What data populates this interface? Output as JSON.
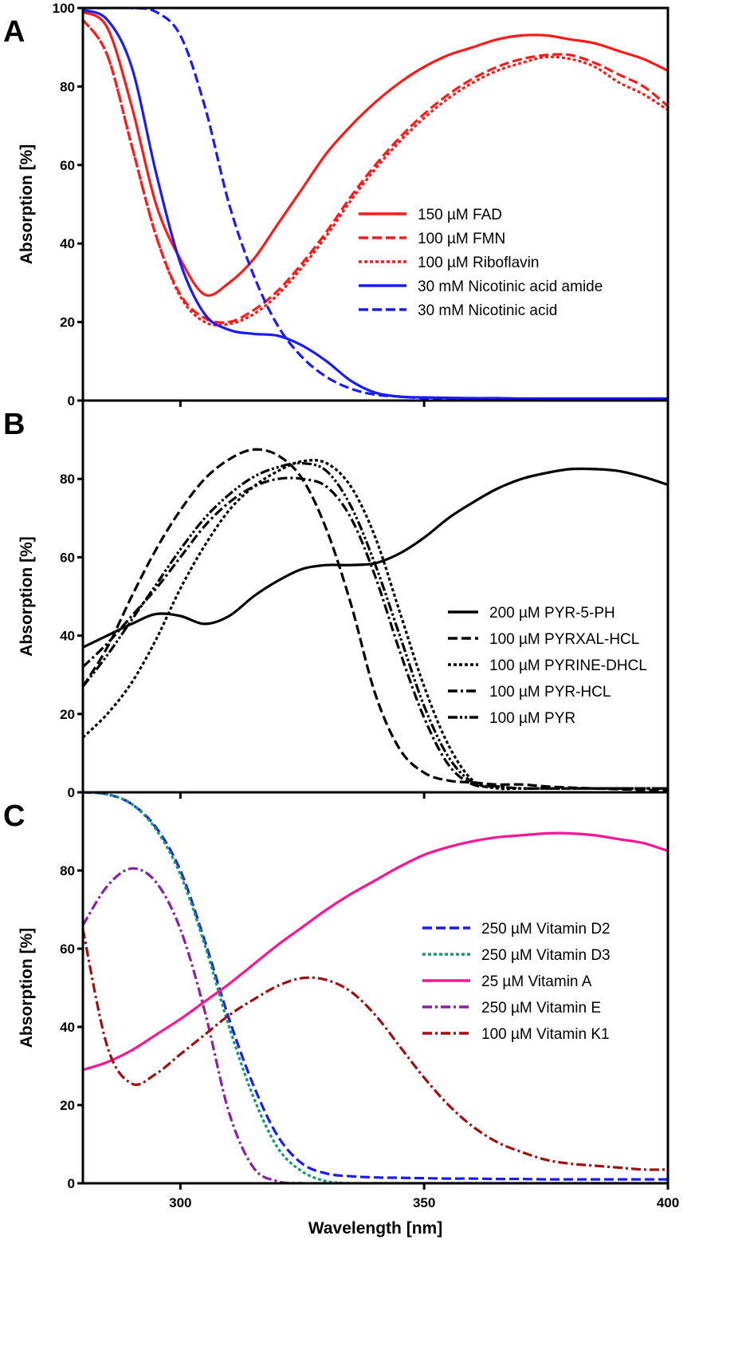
{
  "chart_data": [
    {
      "panel_label": "A",
      "type": "line",
      "ylabel": "Absorption [%]",
      "xlabel": "",
      "xlim": [
        280,
        400
      ],
      "ylim": [
        0,
        100
      ],
      "yticks": [
        "0",
        "20",
        "40",
        "60",
        "80",
        "100"
      ],
      "xticks": [],
      "legend_position": "center-right",
      "x": [
        280,
        285,
        290,
        295,
        300,
        305,
        310,
        315,
        320,
        325,
        330,
        335,
        340,
        345,
        350,
        355,
        360,
        365,
        370,
        375,
        380,
        385,
        390,
        395,
        400
      ],
      "series": [
        {
          "name": "150 µM FAD",
          "color": "#ff1a1a",
          "dash": "solid",
          "values": [
            99,
            95,
            75,
            50,
            36,
            27,
            30,
            36,
            45,
            54,
            63,
            70,
            76,
            81,
            85,
            88,
            90,
            92,
            93,
            93,
            92,
            91,
            89,
            87,
            84
          ]
        },
        {
          "name": "100 µM FMN",
          "color": "#ff1a1a",
          "dash": "dashed",
          "values": [
            97,
            88,
            65,
            42,
            27,
            21,
            20,
            23,
            28,
            35,
            43,
            52,
            60,
            67,
            73,
            78,
            82,
            85,
            87,
            88,
            88,
            86,
            83,
            80,
            75
          ]
        },
        {
          "name": "100 µM Riboflavin",
          "color": "#ff1a1a",
          "dash": "dotted",
          "values": [
            97,
            88,
            65,
            42,
            26.5,
            20,
            19.5,
            22,
            27,
            34,
            42,
            51,
            59,
            66,
            72,
            77,
            81,
            84,
            86,
            87.5,
            87,
            85,
            81,
            78,
            74
          ]
        },
        {
          "name": "30 mM Nicotinic acid amide",
          "color": "#1a1aff",
          "dash": "solid",
          "values": [
            99.5,
            97,
            85,
            58,
            35,
            22,
            18,
            17,
            16.5,
            14,
            10,
            5,
            2,
            1,
            0.8,
            0.7,
            0.6,
            0.6,
            0.5,
            0.5,
            0.5,
            0.5,
            0.5,
            0.5,
            0.5
          ]
        },
        {
          "name": "30 mM Nicotinic acid",
          "color": "#1a1aff",
          "dash": "dashed",
          "values": [
            100,
            100,
            100,
            99,
            93,
            75,
            50,
            32,
            19,
            11,
            6,
            3,
            1.5,
            1,
            0.6,
            0.5,
            0.4,
            0.4,
            0.3,
            0.3,
            0.3,
            0.3,
            0.3,
            0.3,
            0.3
          ]
        }
      ]
    },
    {
      "panel_label": "B",
      "type": "line",
      "ylabel": "Absorption [%]",
      "xlabel": "",
      "xlim": [
        280,
        400
      ],
      "ylim": [
        0,
        100
      ],
      "yticks": [
        "0",
        "20",
        "40",
        "60",
        "80"
      ],
      "xticks": [],
      "legend_position": "center-right",
      "x": [
        280,
        285,
        290,
        295,
        300,
        305,
        310,
        315,
        320,
        325,
        330,
        335,
        340,
        345,
        350,
        355,
        360,
        365,
        370,
        375,
        380,
        385,
        390,
        395,
        400
      ],
      "series": [
        {
          "name": "200 µM PYR-5-PH",
          "color": "#000000",
          "dash": "solid",
          "values": [
            37,
            40,
            43,
            45.5,
            45,
            43,
            45,
            50,
            54,
            57,
            58,
            58,
            58.5,
            61,
            65,
            70,
            74,
            77.5,
            80,
            81.5,
            82.5,
            82.5,
            82,
            80.5,
            78.5
          ]
        },
        {
          "name": "100 µM PYRXAL-HCL",
          "color": "#000000",
          "dash": "dashed",
          "values": [
            27,
            37,
            50,
            62,
            72,
            80,
            85,
            87.5,
            86,
            80,
            67,
            48,
            25,
            11,
            5,
            3,
            2.5,
            2,
            2,
            1.5,
            1.2,
            1,
            0.8,
            0.6,
            0.5
          ]
        },
        {
          "name": "100 µM PYRINE-DHCL",
          "color": "#000000",
          "dash": "dotted",
          "values": [
            14,
            20,
            28,
            39,
            52,
            63,
            72,
            78,
            82,
            84.5,
            84,
            78,
            65,
            46,
            27,
            12,
            3,
            1,
            1,
            1,
            1,
            1,
            1,
            1,
            1
          ]
        },
        {
          "name": "100 µM PYR-HCL",
          "color": "#000000",
          "dash": "dashdot",
          "values": [
            32,
            38,
            45,
            52,
            60,
            68,
            74,
            78,
            80,
            80,
            78,
            70,
            55,
            36,
            19,
            7,
            2,
            1.5,
            1,
            1,
            1,
            1,
            1,
            1,
            1
          ]
        },
        {
          "name": "100 µM PYR",
          "color": "#000000",
          "dash": "dashdotdot",
          "values": [
            27,
            35,
            44,
            53,
            62,
            70,
            76,
            80.5,
            83,
            84,
            82,
            73,
            58,
            40,
            22,
            9,
            2.5,
            1.5,
            1,
            1,
            1,
            1,
            1,
            1,
            1
          ]
        }
      ]
    },
    {
      "panel_label": "C",
      "type": "line",
      "ylabel": "Absorption [%]",
      "xlabel": "Wavelength [nm]",
      "xlim": [
        280,
        400
      ],
      "ylim": [
        0,
        100
      ],
      "yticks": [
        "0",
        "20",
        "40",
        "60",
        "80"
      ],
      "xticks": [
        "300",
        "350",
        "400"
      ],
      "legend_position": "center-right",
      "x": [
        280,
        285,
        290,
        295,
        300,
        305,
        310,
        315,
        320,
        325,
        330,
        335,
        340,
        345,
        350,
        355,
        360,
        365,
        370,
        375,
        380,
        385,
        390,
        395,
        400
      ],
      "series": [
        {
          "name": "250 µM Vitamin D2",
          "color": "#1a1aff",
          "dash": "dashed",
          "values": [
            100,
            99.5,
            97,
            91,
            80,
            62,
            42,
            25,
            12,
            5,
            2.5,
            1.8,
            1.5,
            1.4,
            1.3,
            1.2,
            1.2,
            1.1,
            1.1,
            1,
            1,
            1,
            1,
            1,
            1
          ]
        },
        {
          "name": "250 µM Vitamin D3",
          "color": "#159a6a",
          "dash": "dotted",
          "values": [
            100,
            99.5,
            97,
            90.5,
            79,
            61,
            40,
            22,
            9,
            3,
            0.5,
            0,
            0,
            0,
            0,
            0,
            0,
            0,
            0,
            0,
            0,
            0,
            0,
            0,
            0
          ]
        },
        {
          "name": "25 µM Vitamin A",
          "color": "#ff1493",
          "dash": "solid",
          "values": [
            29,
            31,
            34,
            38,
            42,
            46.5,
            51,
            56,
            61,
            65.5,
            70,
            74,
            77.5,
            81,
            84,
            86,
            87.5,
            88.5,
            89,
            89.5,
            89.5,
            89,
            88,
            87,
            85
          ]
        },
        {
          "name": "250 µM Vitamin E",
          "color": "#8b1fa8",
          "dash": "dashdot",
          "values": [
            66,
            76,
            80.5,
            77,
            65,
            44,
            18,
            4,
            0.5,
            0,
            0,
            0,
            0,
            0,
            0,
            0,
            0,
            0,
            0,
            0,
            0,
            0,
            0,
            0,
            0
          ]
        },
        {
          "name": "100 µM Vitamin K1",
          "color": "#a01010",
          "dash": "dashdot",
          "values": [
            65,
            35,
            25.5,
            28,
            33,
            38,
            43,
            47,
            50.5,
            52.5,
            52,
            49,
            43,
            35,
            27,
            20,
            14.5,
            10.5,
            8,
            6,
            5,
            4.5,
            4,
            3.5,
            3.5
          ]
        }
      ]
    }
  ]
}
